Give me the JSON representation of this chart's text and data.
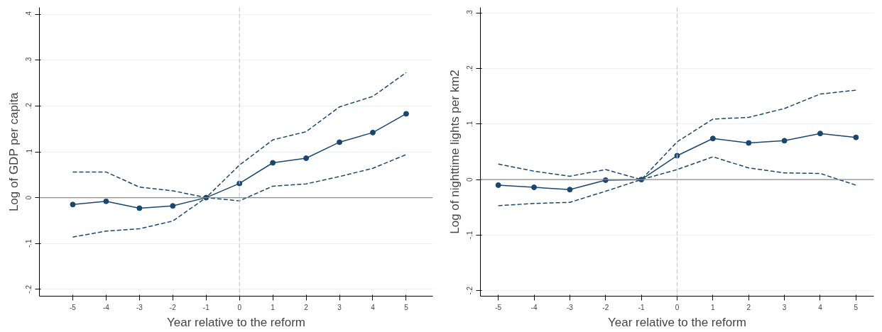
{
  "chart_data": [
    {
      "type": "line",
      "xlabel": "Year relative to the reform",
      "ylabel": "Log of GDP per capita",
      "x": [
        -5,
        -4,
        -3,
        -2,
        -1,
        0,
        1,
        2,
        3,
        4,
        5
      ],
      "xlim": [
        -6,
        5.8
      ],
      "xticks": [
        -5,
        -4,
        -3,
        -2,
        -1,
        0,
        1,
        2,
        3,
        4,
        5
      ],
      "ylim": [
        -0.215,
        0.415
      ],
      "yticks": [
        {
          "value": -0.2,
          "label": "-.2"
        },
        {
          "value": -0.1,
          "label": "-.1"
        },
        0,
        {
          "value": 0.1,
          "label": ".1"
        },
        {
          "value": 0.2,
          "label": ".2"
        },
        {
          "value": 0.3,
          "label": ".3"
        },
        {
          "value": 0.4,
          "label": ".4"
        }
      ],
      "grid": "y",
      "ref_lines": [
        {
          "axis": "y",
          "value": 0,
          "color": "#8c8c8c",
          "line_style": "solid"
        },
        {
          "axis": "x",
          "value": 0,
          "color": "#c8c8c8",
          "line_style": "dashed"
        }
      ],
      "series": [
        {
          "color": "#1a476f",
          "marker": "circle",
          "line_style": "solid",
          "values": [
            -0.015,
            -0.008,
            -0.023,
            -0.018,
            0,
            0.031,
            0.076,
            0.086,
            0.121,
            0.142,
            0.183
          ]
        },
        {
          "color": "#1a476f",
          "marker": "none",
          "line_style": "dashed",
          "values": [
            0.056,
            0.056,
            0.023,
            0.015,
            0,
            0.071,
            0.126,
            0.144,
            0.198,
            0.221,
            0.273
          ]
        },
        {
          "color": "#1a476f",
          "marker": "none",
          "line_style": "dashed",
          "values": [
            -0.086,
            -0.073,
            -0.068,
            -0.051,
            0,
            -0.007,
            0.025,
            0.03,
            0.046,
            0.064,
            0.094
          ]
        }
      ]
    },
    {
      "type": "line",
      "xlabel": "Year relative to the reform",
      "ylabel": "Log of nighttime lights per km2",
      "x": [
        -5,
        -4,
        -3,
        -2,
        -1,
        0,
        1,
        2,
        3,
        4,
        5
      ],
      "xlim": [
        -5.5,
        5.5
      ],
      "xticks": [
        -5,
        -4,
        -3,
        -2,
        -1,
        0,
        1,
        2,
        3,
        4,
        5
      ],
      "ylim": [
        -0.21,
        0.31
      ],
      "yticks": [
        {
          "value": -0.2,
          "label": "-.2"
        },
        {
          "value": -0.1,
          "label": "-.1"
        },
        0,
        {
          "value": 0.1,
          "label": ".1"
        },
        {
          "value": 0.2,
          "label": ".2"
        },
        {
          "value": 0.3,
          "label": ".3"
        }
      ],
      "grid": "y",
      "ref_lines": [
        {
          "axis": "y",
          "value": 0,
          "color": "#8c8c8c",
          "line_style": "solid"
        },
        {
          "axis": "x",
          "value": 0,
          "color": "#c8c8c8",
          "line_style": "dashed"
        }
      ],
      "series": [
        {
          "color": "#1a476f",
          "marker": "circle",
          "line_style": "solid",
          "values": [
            -0.01,
            -0.014,
            -0.018,
            -0.001,
            0,
            0.043,
            0.074,
            0.066,
            0.07,
            0.083,
            0.076
          ]
        },
        {
          "color": "#1a476f",
          "marker": "none",
          "line_style": "dashed",
          "values": [
            0.028,
            0.015,
            0.006,
            0.018,
            0,
            0.068,
            0.109,
            0.112,
            0.128,
            0.154,
            0.161
          ]
        },
        {
          "color": "#1a476f",
          "marker": "none",
          "line_style": "dashed",
          "values": [
            -0.047,
            -0.043,
            -0.041,
            -0.021,
            0,
            0.018,
            0.041,
            0.021,
            0.012,
            0.011,
            -0.01
          ]
        }
      ]
    }
  ]
}
